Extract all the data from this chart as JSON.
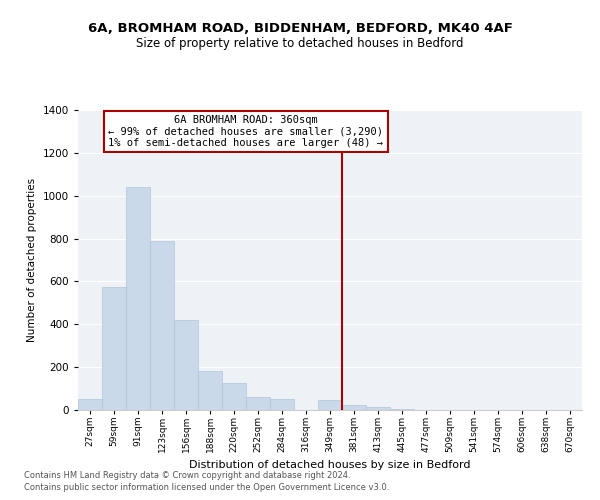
{
  "title": "6A, BROMHAM ROAD, BIDDENHAM, BEDFORD, MK40 4AF",
  "subtitle": "Size of property relative to detached houses in Bedford",
  "xlabel": "Distribution of detached houses by size in Bedford",
  "ylabel": "Number of detached properties",
  "bar_color": "#cad9ea",
  "bar_edge_color": "#b0c4d8",
  "bg_color": "#eef2f7",
  "grid_color": "#ffffff",
  "categories": [
    "27sqm",
    "59sqm",
    "91sqm",
    "123sqm",
    "156sqm",
    "188sqm",
    "220sqm",
    "252sqm",
    "284sqm",
    "316sqm",
    "349sqm",
    "381sqm",
    "413sqm",
    "445sqm",
    "477sqm",
    "509sqm",
    "541sqm",
    "574sqm",
    "606sqm",
    "638sqm",
    "670sqm"
  ],
  "values": [
    50,
    575,
    1040,
    790,
    420,
    180,
    125,
    62,
    52,
    0,
    48,
    22,
    14,
    7,
    0,
    0,
    0,
    0,
    0,
    0,
    0
  ],
  "vline_index": 10.5,
  "vline_color": "#aa0000",
  "annotation_line1": "6A BROMHAM ROAD: 360sqm",
  "annotation_line2": "← 99% of detached houses are smaller (3,290)",
  "annotation_line3": "1% of semi-detached houses are larger (48) →",
  "annotation_box_color": "#aa0000",
  "ylim": [
    0,
    1400
  ],
  "yticks": [
    0,
    200,
    400,
    600,
    800,
    1000,
    1200,
    1400
  ],
  "footnote1": "Contains HM Land Registry data © Crown copyright and database right 2024.",
  "footnote2": "Contains public sector information licensed under the Open Government Licence v3.0."
}
